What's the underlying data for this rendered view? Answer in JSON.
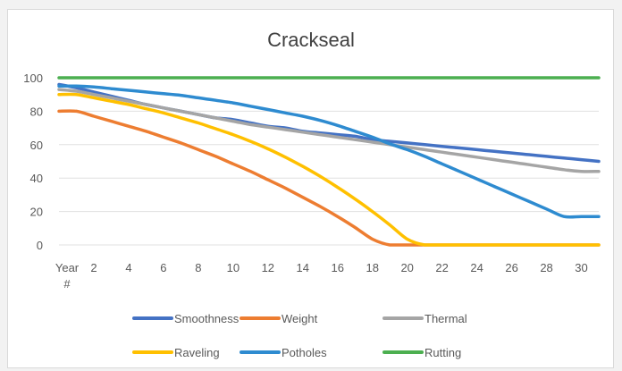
{
  "chart_data": {
    "type": "line",
    "title": "Crackseal",
    "xlabel": "",
    "ylabel": "",
    "x_first_tick": "Year",
    "x_first_tick_sub": "#",
    "x_ticks": [
      "2",
      "4",
      "6",
      "8",
      "10",
      "12",
      "14",
      "16",
      "18",
      "20",
      "22",
      "24",
      "26",
      "28",
      "30"
    ],
    "y_ticks": [
      "0",
      "20",
      "40",
      "60",
      "80",
      "100"
    ],
    "xlim": [
      0,
      31
    ],
    "ylim": [
      0,
      100
    ],
    "grid": true,
    "legend_position": "bottom",
    "x": [
      0,
      1,
      2,
      3,
      4,
      5,
      6,
      7,
      8,
      9,
      10,
      11,
      12,
      13,
      14,
      15,
      16,
      17,
      18,
      19,
      20,
      21,
      22,
      23,
      24,
      25,
      26,
      27,
      28,
      29,
      30,
      31
    ],
    "series": [
      {
        "name": "Smoothness",
        "color": "#4472c4",
        "values": [
          96,
          94,
          91.5,
          89,
          86.5,
          84,
          82,
          80,
          78,
          76,
          75,
          73,
          71,
          70,
          68,
          67,
          66,
          65,
          63,
          62,
          61,
          60,
          59,
          58,
          57,
          56,
          55,
          54,
          53,
          52,
          51,
          50
        ]
      },
      {
        "name": "Weight",
        "color": "#ed7d31",
        "values": [
          80,
          80,
          77,
          74,
          71,
          68,
          64.5,
          61,
          57,
          53,
          48.5,
          44,
          39,
          34,
          28.5,
          23,
          17,
          10.5,
          3.5,
          0,
          0,
          0,
          0,
          0,
          0,
          0,
          0,
          0,
          0,
          0,
          0,
          0
        ]
      },
      {
        "name": "Thermal",
        "color": "#a5a5a5",
        "values": [
          93,
          92,
          90,
          88,
          86,
          84,
          82,
          80,
          78,
          76,
          74,
          72,
          70.5,
          69,
          67.5,
          66,
          64.5,
          63,
          61.5,
          60,
          58.5,
          57,
          55.5,
          54,
          52.5,
          51,
          49.5,
          48,
          46.5,
          45,
          44,
          44
        ]
      },
      {
        "name": "Raveling",
        "color": "#ffc000",
        "values": [
          90,
          90,
          88,
          86,
          84,
          81.5,
          79,
          76,
          73,
          69.5,
          66,
          62,
          57.5,
          52.5,
          47,
          41,
          34.5,
          27.5,
          20,
          12,
          3.5,
          0,
          0,
          0,
          0,
          0,
          0,
          0,
          0,
          0,
          0,
          0
        ]
      },
      {
        "name": "Potholes",
        "color": "#2e8bd0",
        "values": [
          95,
          95,
          94.5,
          93.5,
          92.5,
          91.5,
          90.5,
          89.5,
          88,
          86.5,
          85,
          83,
          81,
          79,
          77,
          74.5,
          71.5,
          68,
          64.5,
          60.5,
          57,
          53,
          48.5,
          44,
          39.5,
          35,
          30.5,
          26,
          21.5,
          17,
          17,
          17
        ]
      },
      {
        "name": "Rutting",
        "color": "#4caf50",
        "values": [
          100,
          100,
          100,
          100,
          100,
          100,
          100,
          100,
          100,
          100,
          100,
          100,
          100,
          100,
          100,
          100,
          100,
          100,
          100,
          100,
          100,
          100,
          100,
          100,
          100,
          100,
          100,
          100,
          100,
          100,
          100,
          100
        ]
      }
    ]
  }
}
